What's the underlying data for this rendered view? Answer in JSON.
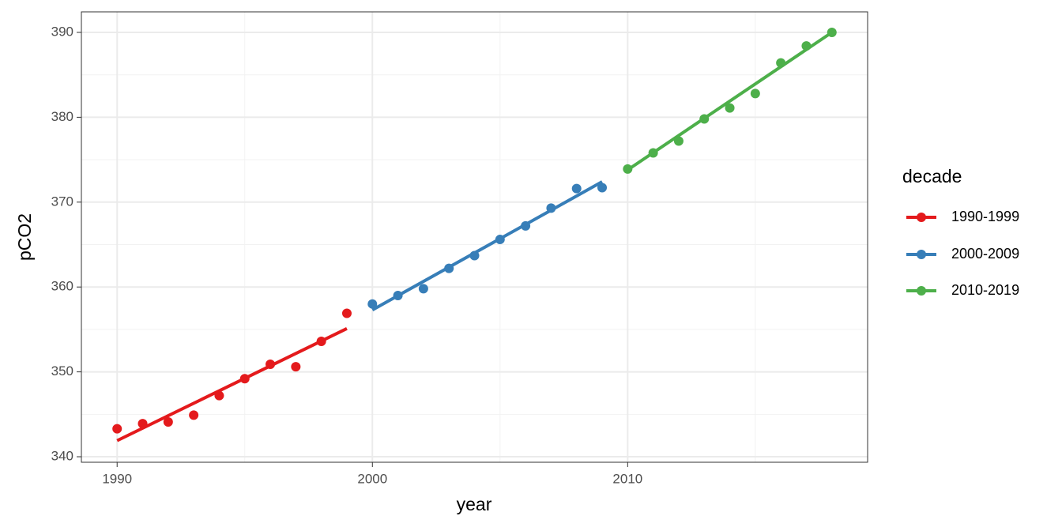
{
  "chart_data": {
    "type": "scatter",
    "x_label": "year",
    "y_label": "pCO2",
    "xlim": [
      1988.6,
      2019.4
    ],
    "ylim": [
      339.35,
      392.42
    ],
    "xticks": [
      1990,
      2000,
      2010
    ],
    "yticks": [
      340,
      350,
      360,
      370,
      380,
      390
    ],
    "xminor": [
      1995,
      2005,
      2015
    ],
    "yminor": [
      345,
      355,
      365,
      375,
      385
    ],
    "grid": true,
    "legend_title": "decade",
    "legend_position": "right",
    "series": [
      {
        "name": "1990-1999",
        "color": "#E41A1C",
        "x": [
          1990,
          1991,
          1992,
          1993,
          1994,
          1995,
          1996,
          1997,
          1998,
          1999
        ],
        "values": [
          343.3,
          343.9,
          344.1,
          344.9,
          347.2,
          349.2,
          350.9,
          350.6,
          353.6,
          356.9
        ],
        "trend_values": [
          341.9,
          355.1
        ]
      },
      {
        "name": "2000-2009",
        "color": "#377EB8",
        "x": [
          2000,
          2001,
          2002,
          2003,
          2004,
          2005,
          2006,
          2007,
          2008,
          2009
        ],
        "values": [
          358.0,
          359.0,
          359.8,
          362.2,
          363.7,
          365.6,
          367.2,
          369.3,
          371.6,
          371.7
        ],
        "trend_values": [
          357.3,
          372.4
        ]
      },
      {
        "name": "2010-2019",
        "color": "#4DAF4A",
        "x": [
          2010,
          2011,
          2012,
          2013,
          2014,
          2015,
          2016,
          2017,
          2018
        ],
        "values": [
          373.9,
          375.8,
          377.2,
          379.8,
          381.1,
          382.8,
          386.4,
          388.4,
          390.0
        ],
        "trend_values": [
          373.8,
          390.0
        ]
      }
    ]
  }
}
